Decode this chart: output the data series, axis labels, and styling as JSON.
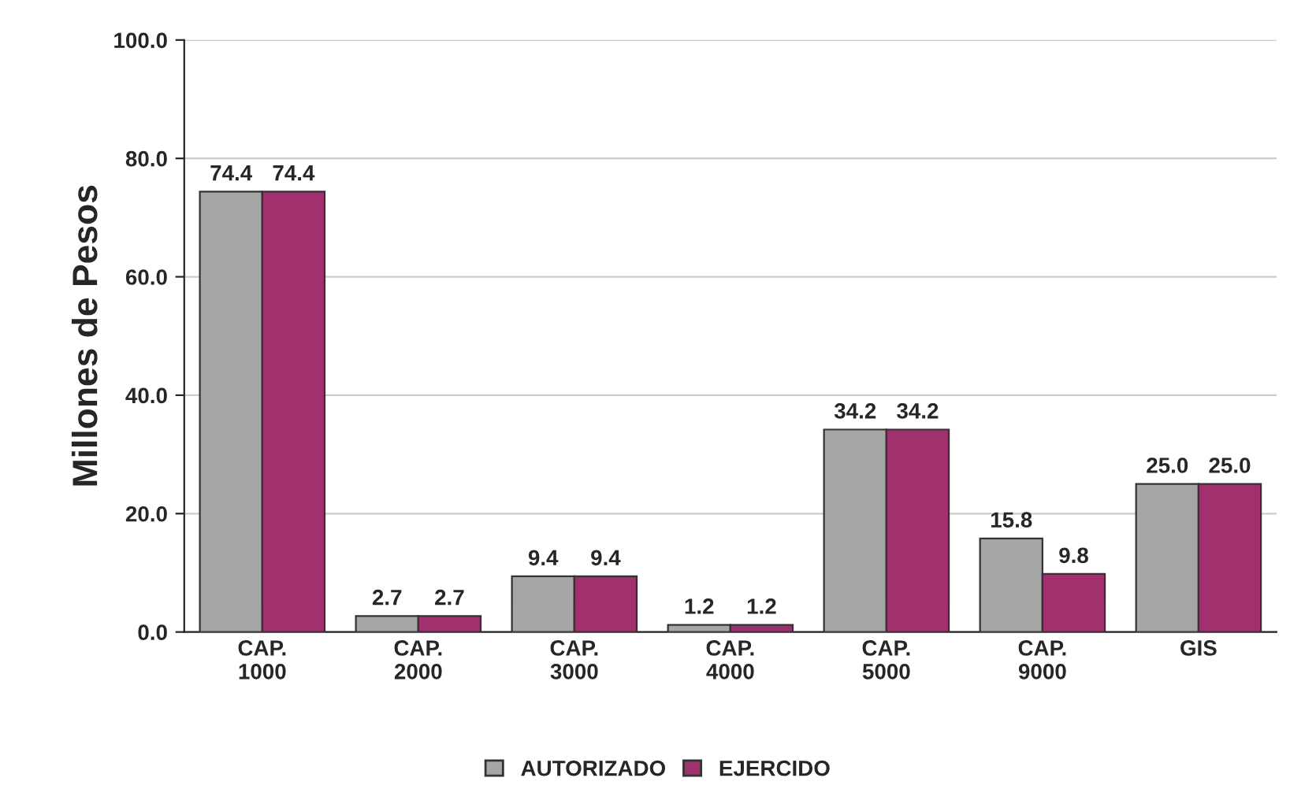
{
  "chart_data": {
    "type": "bar",
    "ylabel": "Millones de Pesos",
    "categories": [
      "CAP.\n1000",
      "CAP.\n2000",
      "CAP.\n3000",
      "CAP.\n4000",
      "CAP.\n5000",
      "CAP.\n9000",
      "GIS"
    ],
    "series": [
      {
        "name": "AUTORIZADO",
        "color": "#a6a6a6",
        "values": [
          74.4,
          2.7,
          9.4,
          1.2,
          34.2,
          15.8,
          25.0
        ],
        "value_labels": [
          "74.4",
          "2.7",
          "9.4",
          "1.2",
          "34.2",
          "15.8",
          "25.0"
        ]
      },
      {
        "name": "EJERCIDO",
        "color": "#a0306e",
        "values": [
          74.4,
          2.7,
          9.4,
          1.2,
          34.2,
          9.8,
          25.0
        ],
        "value_labels": [
          "74.4",
          "2.7",
          "9.4",
          "1.2",
          "34.2",
          "9.8",
          "25.0"
        ]
      }
    ],
    "ylim": [
      0,
      100
    ],
    "yticks": [
      {
        "value": 0,
        "label": "0.0"
      },
      {
        "value": 20,
        "label": "20.0"
      },
      {
        "value": 40,
        "label": "40.0"
      },
      {
        "value": 60,
        "label": "60.0"
      },
      {
        "value": 80,
        "label": "80.0"
      },
      {
        "value": 100,
        "label": "100.0"
      }
    ],
    "grid": "y",
    "legend": "bottom"
  }
}
